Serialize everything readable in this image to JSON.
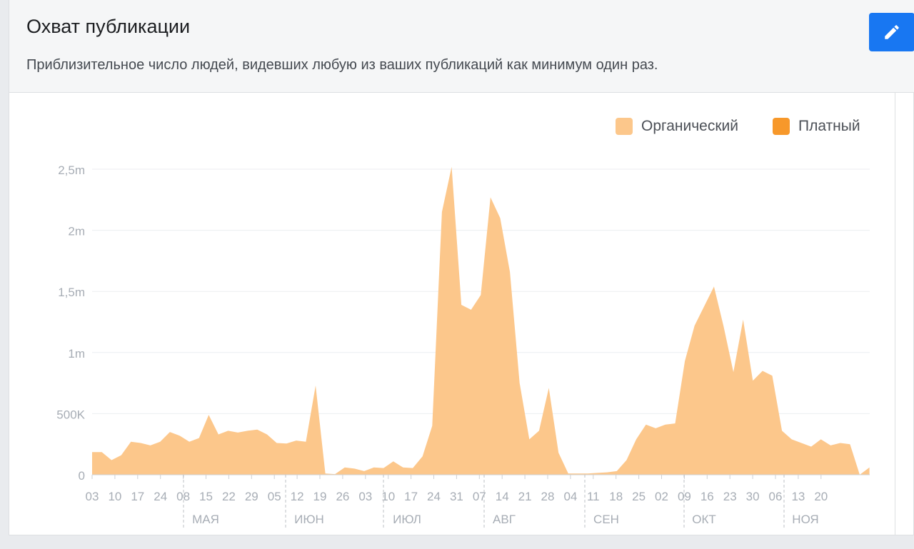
{
  "header": {
    "title": "Охват публикации",
    "subtitle": "Приблизительное число людей, видевших любую из ваших публикаций как минимум один раз."
  },
  "colors": {
    "organic": "#fcc78b",
    "paid": "#f7982a",
    "axis_text": "#a7adb5",
    "grid": "#eceef1",
    "edit_button": "#1877f2"
  },
  "icons": {
    "edit": "pencil-icon"
  },
  "chart_data": {
    "type": "area",
    "title": "",
    "xlabel": "",
    "ylabel": "",
    "ylim": [
      0,
      2500000
    ],
    "y_ticks": [
      {
        "value": 0,
        "label": "0"
      },
      {
        "value": 500000,
        "label": "500K"
      },
      {
        "value": 1000000,
        "label": "1m"
      },
      {
        "value": 1500000,
        "label": "1,5m"
      },
      {
        "value": 2000000,
        "label": "2m"
      },
      {
        "value": 2500000,
        "label": "2,5m"
      }
    ],
    "grid": true,
    "legend_position": "top-right",
    "legend": [
      {
        "name": "Органический",
        "color": "#fcc78b"
      },
      {
        "name": "Платный",
        "color": "#f7982a"
      }
    ],
    "x_tick_labels": [
      "03",
      "10",
      "17",
      "24",
      "08",
      "15",
      "22",
      "29",
      "05",
      "12",
      "19",
      "26",
      "03",
      "10",
      "17",
      "24",
      "31",
      "07",
      "14",
      "21",
      "28",
      "04",
      "11",
      "18",
      "25",
      "02",
      "09",
      "16",
      "23",
      "30",
      "06",
      "13",
      "20"
    ],
    "month_labels": [
      "МАЯ",
      "ИЮН",
      "ИЮЛ",
      "АВГ",
      "СЕН",
      "ОКТ",
      "НОЯ"
    ],
    "series": [
      {
        "name": "Органический",
        "values": [
          185000,
          185000,
          120000,
          160000,
          270000,
          260000,
          240000,
          270000,
          350000,
          320000,
          270000,
          300000,
          490000,
          330000,
          360000,
          345000,
          360000,
          370000,
          330000,
          260000,
          255000,
          280000,
          270000,
          730000,
          10000,
          5000,
          60000,
          50000,
          30000,
          60000,
          55000,
          110000,
          60000,
          55000,
          150000,
          400000,
          2150000,
          2520000,
          1390000,
          1350000,
          1470000,
          2270000,
          2100000,
          1660000,
          750000,
          290000,
          360000,
          710000,
          180000,
          10000,
          10000,
          10000,
          15000,
          20000,
          30000,
          120000,
          290000,
          410000,
          380000,
          410000,
          420000,
          930000,
          1220000,
          1380000,
          1540000,
          1210000,
          840000,
          1270000,
          770000,
          850000,
          810000,
          360000,
          290000,
          260000,
          230000,
          290000,
          240000,
          260000,
          250000,
          0,
          60000
        ]
      },
      {
        "name": "Платный",
        "values": [
          0,
          0,
          0,
          0,
          0,
          0,
          0,
          0,
          0,
          0,
          0,
          0,
          0,
          0,
          0,
          0,
          0,
          0,
          0,
          0,
          0,
          0,
          0,
          0,
          0,
          0,
          0,
          0,
          0,
          0,
          0,
          0,
          0,
          0,
          0,
          0,
          0,
          0,
          0,
          0,
          0,
          0,
          0,
          0,
          0,
          0,
          0,
          0,
          0,
          0,
          0,
          0,
          0,
          0,
          0,
          0,
          0,
          0,
          0,
          0,
          0,
          0,
          0,
          0,
          0,
          0,
          0,
          0,
          0,
          0,
          0,
          0,
          0,
          0,
          0,
          0,
          0,
          0,
          0,
          0,
          0
        ]
      }
    ]
  }
}
